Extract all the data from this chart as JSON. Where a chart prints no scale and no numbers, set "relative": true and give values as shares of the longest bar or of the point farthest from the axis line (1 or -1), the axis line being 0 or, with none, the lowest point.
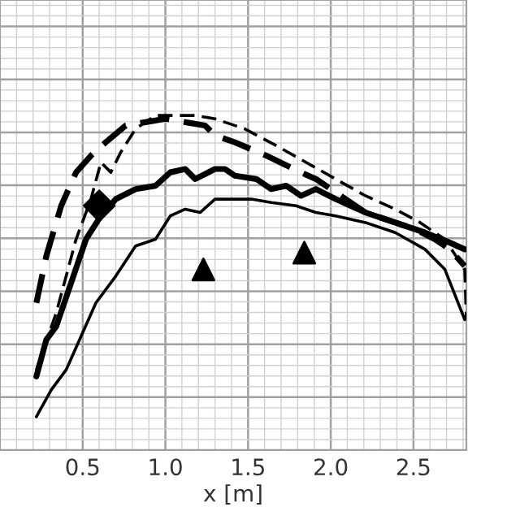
{
  "chart_data": {
    "type": "line",
    "relative": true,
    "xlabel": "x [m]",
    "xlim": [
      0.22,
      2.82
    ],
    "xticks": [
      {
        "value": 0.5,
        "label": "0.5"
      },
      {
        "value": 1.0,
        "label": "1.0"
      },
      {
        "value": 1.5,
        "label": "1.5"
      },
      {
        "value": 2.0,
        "label": "2.0"
      },
      {
        "value": 2.5,
        "label": "2.5"
      }
    ],
    "grid": true,
    "tick_labels": "x",
    "series": [
      {
        "color": "#000000",
        "line_style": "dashed",
        "x": [
          0.22,
          0.28,
          0.37,
          0.46,
          0.55,
          0.64,
          0.76,
          0.88,
          1.0,
          1.12,
          1.24,
          1.3,
          1.42,
          1.61,
          1.82,
          1.91,
          2.03,
          2.21,
          2.39,
          2.51,
          2.63,
          2.72,
          2.81
        ],
        "values": [
          0.44,
          0.58,
          0.73,
          0.83,
          0.88,
          0.92,
          0.97,
          0.98,
          0.99,
          0.98,
          0.97,
          0.94,
          0.92,
          0.88,
          0.83,
          0.81,
          0.77,
          0.71,
          0.68,
          0.66,
          0.63,
          0.6,
          0.55
        ]
      },
      {
        "color": "#000000",
        "line_style": "dashed",
        "x": [
          0.22,
          0.34,
          0.46,
          0.55,
          0.61,
          0.67,
          0.73,
          0.82,
          0.94,
          1.06,
          1.18,
          1.3,
          1.48,
          1.67,
          1.85,
          2.03,
          2.21,
          2.39,
          2.54,
          2.69,
          2.81,
          2.82
        ],
        "values": [
          0.24,
          0.41,
          0.63,
          0.75,
          0.86,
          0.83,
          0.89,
          0.96,
          1.0,
          1.0,
          1.0,
          0.99,
          0.96,
          0.91,
          0.86,
          0.81,
          0.76,
          0.72,
          0.68,
          0.63,
          0.54,
          0.39
        ]
      },
      {
        "color": "#000000",
        "line_style": "solid",
        "x": [
          0.22,
          0.28,
          0.34,
          0.43,
          0.52,
          0.61,
          0.7,
          0.82,
          0.94,
          1.03,
          1.12,
          1.18,
          1.3,
          1.36,
          1.42,
          1.55,
          1.64,
          1.73,
          1.82,
          1.91,
          2.03,
          2.21,
          2.39,
          2.57,
          2.72,
          2.81
        ],
        "values": [
          0.22,
          0.33,
          0.37,
          0.5,
          0.63,
          0.7,
          0.75,
          0.78,
          0.79,
          0.83,
          0.84,
          0.81,
          0.84,
          0.84,
          0.82,
          0.81,
          0.78,
          0.79,
          0.76,
          0.78,
          0.75,
          0.71,
          0.68,
          0.65,
          0.62,
          0.6
        ]
      },
      {
        "color": "#000000",
        "line_style": "solid",
        "x": [
          0.22,
          0.31,
          0.4,
          0.49,
          0.58,
          0.7,
          0.82,
          0.94,
          1.03,
          1.12,
          1.21,
          1.3,
          1.42,
          1.52,
          1.64,
          1.79,
          1.91,
          2.03,
          2.21,
          2.39,
          2.57,
          2.69,
          2.81
        ],
        "values": [
          0.1,
          0.18,
          0.24,
          0.34,
          0.44,
          0.52,
          0.61,
          0.63,
          0.7,
          0.72,
          0.71,
          0.75,
          0.75,
          0.75,
          0.74,
          0.73,
          0.71,
          0.7,
          0.68,
          0.65,
          0.6,
          0.54,
          0.39
        ]
      },
      {
        "type": "scatter",
        "marker": "diamond",
        "color": "#000000",
        "x": [
          0.6
        ],
        "values": [
          0.73
        ]
      },
      {
        "type": "scatter",
        "marker": "triangle",
        "color": "#000000",
        "x": [
          1.23,
          1.84
        ],
        "values": [
          0.54,
          0.59
        ]
      }
    ]
  }
}
